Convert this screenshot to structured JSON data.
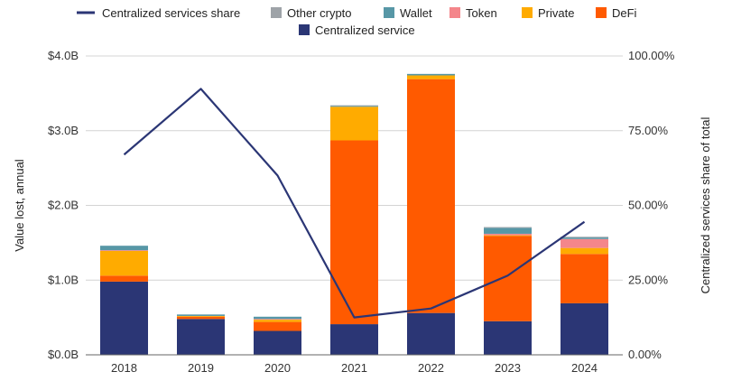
{
  "chart_data": {
    "type": "bar",
    "stacked": true,
    "title": "",
    "categories": [
      "2018",
      "2019",
      "2020",
      "2021",
      "2022",
      "2023",
      "2024"
    ],
    "series": [
      {
        "name": "Centralized service",
        "color": "#2b3675",
        "values": [
          0.98,
          0.48,
          0.32,
          0.41,
          0.56,
          0.45,
          0.69
        ]
      },
      {
        "name": "DeFi",
        "color": "#ff5a00",
        "values": [
          0.08,
          0.03,
          0.12,
          2.46,
          3.13,
          1.14,
          0.66
        ]
      },
      {
        "name": "Private",
        "color": "#ffab00",
        "values": [
          0.33,
          0.01,
          0.03,
          0.45,
          0.05,
          0.01,
          0.08
        ]
      },
      {
        "name": "Token",
        "color": "#f4868b",
        "values": [
          0.01,
          0.0,
          0.01,
          0.0,
          0.0,
          0.02,
          0.12
        ]
      },
      {
        "name": "Wallet",
        "color": "#5797a6",
        "values": [
          0.06,
          0.02,
          0.03,
          0.01,
          0.02,
          0.08,
          0.02
        ]
      },
      {
        "name": "Other crypto",
        "color": "#9ea3a8",
        "values": [
          0.0,
          0.0,
          0.0,
          0.01,
          0.0,
          0.01,
          0.01
        ]
      }
    ],
    "line": {
      "name": "Centralized services share",
      "color": "#2b3675",
      "axis": "right",
      "values": [
        67,
        89,
        60,
        12.5,
        15.5,
        26.5,
        44.5
      ]
    },
    "ylabel": "Value lost, annual",
    "y2label": "Centralized services share of total",
    "ylim": [
      0,
      4
    ],
    "y2lim": [
      0,
      100
    ],
    "yticks": [
      {
        "value": 0,
        "label": "$0.0B"
      },
      {
        "value": 1,
        "label": "$1.0B"
      },
      {
        "value": 2,
        "label": "$2.0B"
      },
      {
        "value": 3,
        "label": "$3.0B"
      },
      {
        "value": 4,
        "label": "$4.0B"
      }
    ],
    "y2ticks": [
      {
        "value": 0,
        "label": "0.00%"
      },
      {
        "value": 25,
        "label": "25.00%"
      },
      {
        "value": 50,
        "label": "50.00%"
      },
      {
        "value": 75,
        "label": "75.00%"
      },
      {
        "value": 100,
        "label": "100.00%"
      }
    ],
    "legend": {
      "position": "top",
      "items": [
        "Centralized services share",
        "Other crypto",
        "Wallet",
        "Token",
        "Private",
        "DeFi",
        "Centralized service"
      ]
    },
    "grid": true
  }
}
